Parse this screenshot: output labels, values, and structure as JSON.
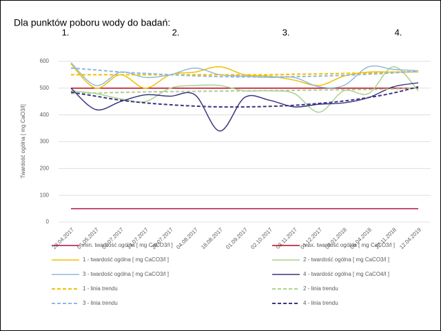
{
  "chart_data": {
    "type": "line",
    "title": "Dla punktów poboru wody do badań:",
    "annotations": [
      "1.",
      "2.",
      "3.",
      "4."
    ],
    "y_label": "Twardość ogólna [ mg CaO3/l]",
    "categories": [
      "28.04.2017",
      "05.05.2017",
      "07.07.2017",
      "14.07.2017",
      "28.07.2017",
      "04.08.2017",
      "18.08.2017",
      "01.09.2017",
      "02.10.2017",
      "03.11.2017",
      "01.12.2017",
      "05.01.2018",
      "06.04.2018",
      "27.11.2018",
      "12.04.2019"
    ],
    "ylim": [
      0,
      600
    ],
    "yticks": [
      0,
      100,
      200,
      300,
      400,
      500,
      600
    ],
    "grid": true,
    "series": [
      {
        "name": "min. twardość ogólna [ mg CaCO3/l ]",
        "color": "#b01040",
        "dashed": false,
        "values": [
          50,
          50,
          50,
          50,
          50,
          50,
          50,
          50,
          50,
          50,
          50,
          50,
          50,
          50,
          50
        ]
      },
      {
        "name": "max. twardość ogólna [ mg CaCO3/l ]",
        "color": "#c00020",
        "dashed": false,
        "values": [
          500,
          500,
          500,
          500,
          500,
          500,
          500,
          500,
          500,
          500,
          500,
          500,
          500,
          500,
          500
        ]
      },
      {
        "name": "1 - twardość ogólna  [ mg CaCO3/l ]",
        "color": "#f0c000",
        "dashed": false,
        "values": [
          590,
          500,
          550,
          500,
          550,
          560,
          580,
          550,
          545,
          530,
          510,
          545,
          560,
          560,
          560
        ]
      },
      {
        "name": "2 - twardość ogólna  [ mg CaCO3/l ]",
        "color": "#a9d18e",
        "dashed": false,
        "values": [
          490,
          480,
          460,
          450,
          500,
          510,
          510,
          490,
          490,
          480,
          410,
          490,
          480,
          580,
          490
        ]
      },
      {
        "name": "3 - twardość ogólna  [ mg CaCO3/l ]",
        "color": "#8fb8dc",
        "dashed": false,
        "values": [
          595,
          510,
          560,
          540,
          550,
          575,
          550,
          545,
          540,
          540,
          505,
          510,
          580,
          570,
          565
        ]
      },
      {
        "name": "4 - twardość ogólna  [ mg CaCO4/l ]",
        "color": "#3a3480",
        "dashed": false,
        "values": [
          500,
          420,
          450,
          475,
          470,
          475,
          340,
          465,
          455,
          430,
          440,
          445,
          465,
          505,
          520
        ]
      },
      {
        "name": "1 - linia trendu",
        "color": "#f0c000",
        "dashed": true,
        "values": [
          550,
          550,
          550,
          550,
          550,
          550,
          550,
          550,
          550,
          552,
          553,
          555,
          557,
          560,
          562
        ]
      },
      {
        "name": "2 - linia trendu",
        "color": "#a9d18e",
        "dashed": true,
        "values": [
          480,
          482,
          484,
          486,
          487,
          488,
          489,
          490,
          491,
          492,
          493,
          494,
          495,
          497,
          500
        ]
      },
      {
        "name": "3 - linia trendu",
        "color": "#8fb8dc",
        "dashed": true,
        "values": [
          575,
          568,
          560,
          555,
          550,
          546,
          543,
          542,
          542,
          543,
          545,
          548,
          552,
          557,
          563
        ]
      },
      {
        "name": "4 - linia trendu",
        "color": "#3a3480",
        "dashed": true,
        "values": [
          485,
          470,
          455,
          445,
          438,
          433,
          430,
          430,
          432,
          436,
          443,
          452,
          465,
          482,
          505
        ]
      }
    ]
  }
}
